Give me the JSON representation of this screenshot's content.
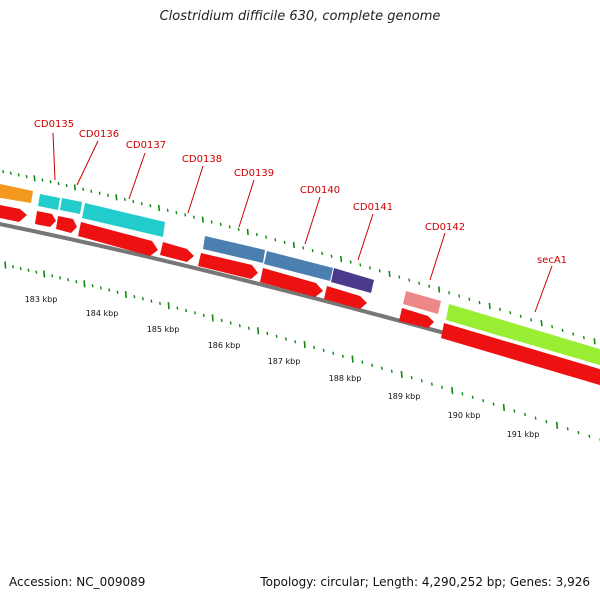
{
  "title": "Clostridium difficile 630, complete genome",
  "footer": {
    "accession": "Accession: NC_009089",
    "summary": "Topology: circular; Length: 4,290,252 bp; Genes: 3,926"
  },
  "colors": {
    "gene_red": "#ee1111",
    "cyan": "#22cccc",
    "steel": "#4a7fb0",
    "navy": "#4b3a8c",
    "pink": "#ee8888",
    "lime": "#99ee33",
    "orange": "#f39a1e",
    "label": "#cc0000",
    "tick": "#118811",
    "backbone": "#777777"
  },
  "gene_labels": [
    "CD0135",
    "CD0136",
    "CD0137",
    "CD0138",
    "CD0139",
    "CD0140",
    "CD0141",
    "CD0142",
    "secA1"
  ],
  "scale_labels": [
    "183 kbp",
    "184 kbp",
    "185 kbp",
    "186 kbp",
    "187 kbp",
    "188 kbp",
    "189 kbp",
    "190 kbp",
    "191 kbp"
  ]
}
